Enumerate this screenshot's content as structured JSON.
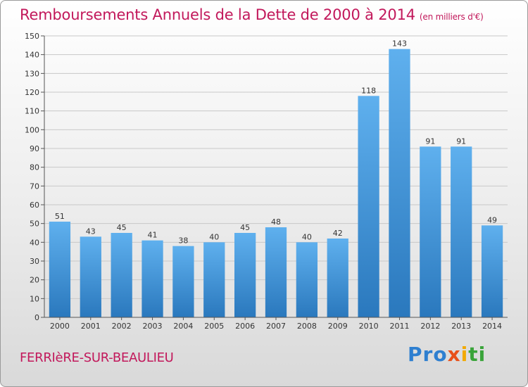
{
  "chart_data": {
    "type": "bar",
    "title": "Remboursements Annuels de la Dette de 2000 à 2014",
    "subtitle": "(en milliers d'€)",
    "categories": [
      "2000",
      "2001",
      "2002",
      "2003",
      "2004",
      "2005",
      "2006",
      "2007",
      "2008",
      "2009",
      "2010",
      "2011",
      "2012",
      "2013",
      "2014"
    ],
    "values": [
      51,
      43,
      45,
      41,
      38,
      40,
      45,
      48,
      40,
      42,
      118,
      143,
      91,
      91,
      49
    ],
    "ylim": [
      0,
      150
    ],
    "ytick_step": 10,
    "xlabel": "",
    "ylabel": "",
    "grid": true,
    "bar_color": "#3d8fd6"
  },
  "footer": {
    "town": "FERRIèRE-SUR-BEAULIEU",
    "brand_parts": [
      "Pro",
      "x",
      "i",
      "ti"
    ]
  }
}
